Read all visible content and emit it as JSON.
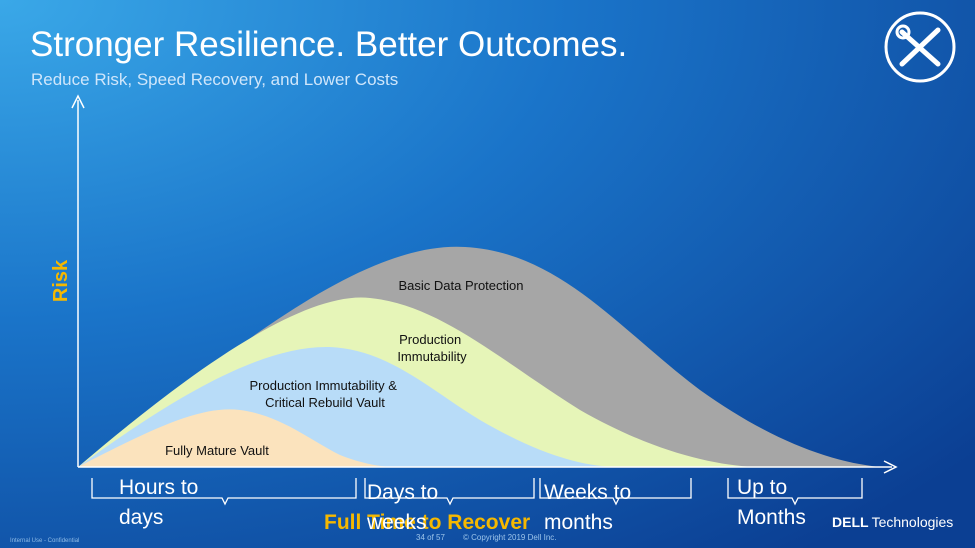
{
  "header": {
    "title": "Stronger Resilience. Better Outcomes.",
    "subtitle": "Reduce Risk, Speed Recovery, and Lower Costs"
  },
  "diagram": {
    "y_axis_label": "Risk",
    "x_axis_label": "Full Time to Recover",
    "areas": [
      {
        "lines": [
          "Basic Data Protection"
        ]
      },
      {
        "lines": [
          "Production",
          "Immutability"
        ]
      },
      {
        "lines": [
          "Production Immutability &",
          "Critical Rebuild Vault"
        ]
      },
      {
        "lines": [
          "Fully Mature Vault"
        ]
      }
    ],
    "ranges": [
      {
        "lines": [
          "Hours to",
          "days"
        ]
      },
      {
        "lines": [
          "Days to",
          "weeks"
        ]
      },
      {
        "lines": [
          "Weeks to",
          "months"
        ]
      },
      {
        "lines": [
          "Up to",
          "Months"
        ]
      }
    ]
  },
  "footer": {
    "classification": "Internal Use - Confidential",
    "page": "34 of 57",
    "copyright": "© Copyright 2019 Dell Inc.",
    "brand": "DELL",
    "brand_suffix": "Technologies"
  }
}
